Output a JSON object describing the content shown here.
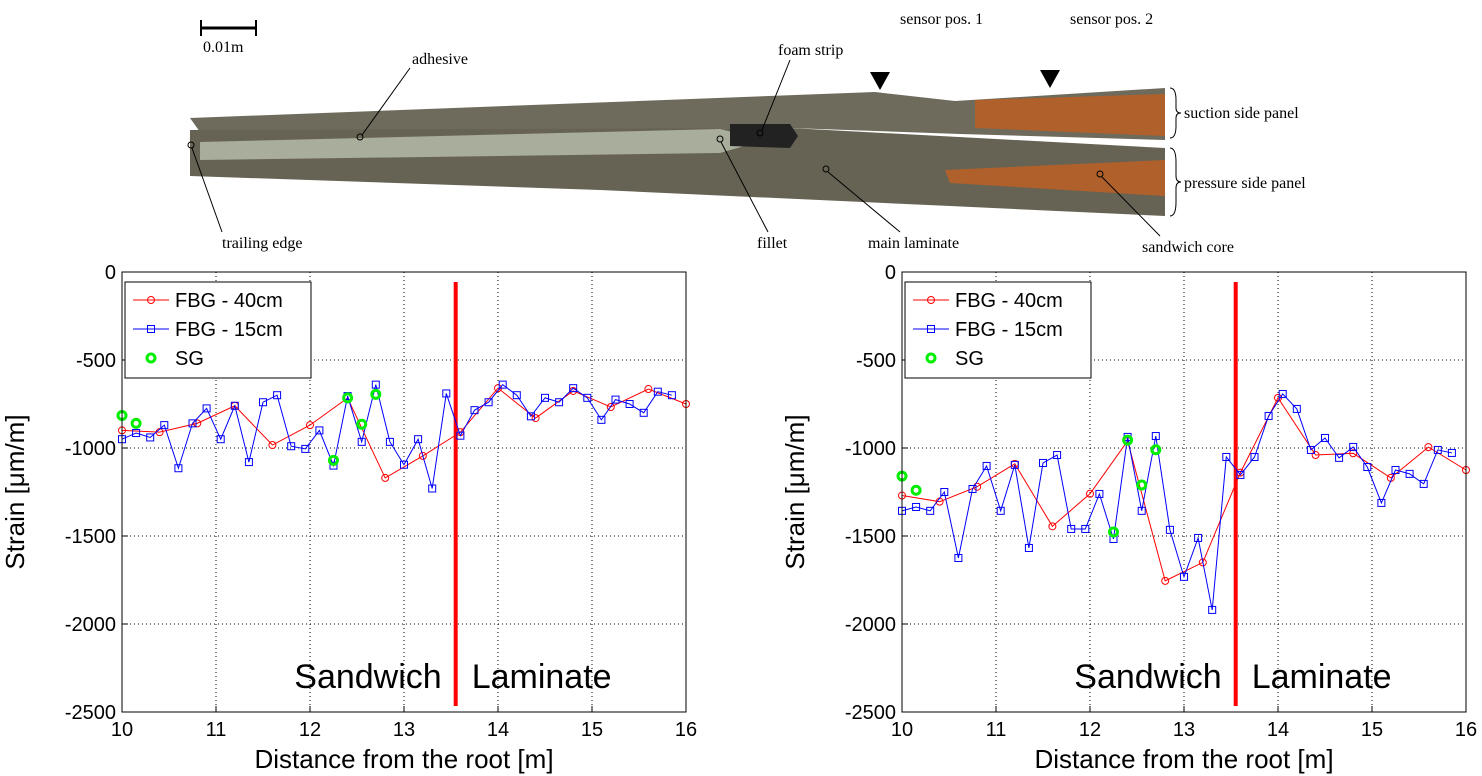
{
  "photo": {
    "scale_bar": "0.01m",
    "labels": {
      "adhesive": "adhesive",
      "foam_strip": "foam strip",
      "sensor_1": "sensor pos. 1",
      "sensor_2": "sensor pos. 2",
      "suction": "suction side panel",
      "pressure": "pressure side panel",
      "trailing_edge": "trailing edge",
      "fillet": "fillet",
      "main_laminate": "main laminate",
      "sandwich_core": "sandwich core"
    }
  },
  "chart_data": [
    {
      "type": "line",
      "xlabel": "Distance from the root [m]",
      "ylabel": "Strain [μm/m]",
      "xlim": [
        10,
        16
      ],
      "ylim": [
        -2500,
        0
      ],
      "xticks": [
        10,
        11,
        12,
        13,
        14,
        15,
        16
      ],
      "yticks": [
        -2500,
        -2000,
        -1500,
        -1000,
        -500,
        0
      ],
      "grid": true,
      "legend": "upper left",
      "divider_x": 13.55,
      "divider_color": "#ff0000",
      "annotations": [
        "Sandwich",
        "Laminate"
      ],
      "series": [
        {
          "name": "FBG - 40cm",
          "color": "#ff0000",
          "marker": "circle",
          "line": true,
          "x": [
            10,
            10.4,
            10.8,
            11.2,
            11.6,
            12.0,
            12.4,
            12.8,
            13.2,
            13.6,
            14.0,
            14.4,
            14.8,
            15.2,
            15.6,
            16.0
          ],
          "values": [
            -900,
            -910,
            -860,
            -760,
            -983,
            -870,
            -716,
            -1170,
            -1045,
            -910,
            -660,
            -830,
            -676,
            -767,
            -665,
            -750
          ]
        },
        {
          "name": "FBG - 15cm",
          "color": "#0000ff",
          "marker": "square",
          "line": true,
          "x": [
            10,
            10.15,
            10.3,
            10.45,
            10.6,
            10.75,
            10.9,
            11.05,
            11.2,
            11.35,
            11.5,
            11.65,
            11.8,
            11.95,
            12.1,
            12.25,
            12.4,
            12.55,
            12.7,
            12.85,
            13.0,
            13.15,
            13.3,
            13.45,
            13.6,
            13.75,
            13.9,
            14.05,
            14.2,
            14.35,
            14.5,
            14.65,
            14.8,
            14.95,
            15.1,
            15.25,
            15.4,
            15.55,
            15.7,
            15.85
          ],
          "values": [
            -950,
            -915,
            -940,
            -870,
            -1115,
            -860,
            -775,
            -950,
            -760,
            -1080,
            -740,
            -700,
            -990,
            -1005,
            -900,
            -1100,
            -705,
            -965,
            -640,
            -965,
            -1095,
            -950,
            -1230,
            -690,
            -930,
            -785,
            -740,
            -640,
            -700,
            -820,
            -715,
            -740,
            -660,
            -715,
            -840,
            -725,
            -750,
            -800,
            -680,
            -700
          ]
        },
        {
          "name": "SG",
          "color": "#00ee00",
          "marker": "ring",
          "line": false,
          "x": [
            10,
            10.15,
            12.25,
            12.4,
            12.55,
            12.7
          ],
          "values": [
            -815,
            -860,
            -1070,
            -715,
            -865,
            -695
          ]
        }
      ]
    },
    {
      "type": "line",
      "xlabel": "Distance from the root [m]",
      "ylabel": "Strain [μm/m]",
      "xlim": [
        10,
        16
      ],
      "ylim": [
        -2500,
        0
      ],
      "xticks": [
        10,
        11,
        12,
        13,
        14,
        15,
        16
      ],
      "yticks": [
        -2500,
        -2000,
        -1500,
        -1000,
        -500,
        0
      ],
      "grid": true,
      "legend": "upper left",
      "divider_x": 13.55,
      "divider_color": "#ff0000",
      "annotations": [
        "Sandwich",
        "Laminate"
      ],
      "series": [
        {
          "name": "FBG - 40cm",
          "color": "#ff0000",
          "marker": "circle",
          "line": true,
          "x": [
            10,
            10.4,
            10.8,
            11.2,
            11.6,
            12.0,
            12.4,
            12.8,
            13.2,
            13.6,
            14.0,
            14.4,
            14.8,
            15.2,
            15.6,
            16.0
          ],
          "values": [
            -1270,
            -1305,
            -1220,
            -1090,
            -1445,
            -1260,
            -960,
            -1755,
            -1650,
            -1140,
            -715,
            -1040,
            -1030,
            -1170,
            -995,
            -1125
          ]
        },
        {
          "name": "FBG - 15cm",
          "color": "#0000ff",
          "marker": "square",
          "line": true,
          "x": [
            10,
            10.15,
            10.3,
            10.45,
            10.6,
            10.75,
            10.9,
            11.05,
            11.2,
            11.35,
            11.5,
            11.65,
            11.8,
            11.95,
            12.1,
            12.25,
            12.4,
            12.55,
            12.7,
            12.85,
            13.0,
            13.15,
            13.3,
            13.45,
            13.6,
            13.75,
            13.9,
            14.05,
            14.2,
            14.35,
            14.5,
            14.65,
            14.8,
            14.95,
            15.1,
            15.25,
            15.4,
            15.55,
            15.7,
            15.85
          ],
          "values": [
            -1357,
            -1335,
            -1357,
            -1250,
            -1625,
            -1233,
            -1102,
            -1357,
            -1096,
            -1568,
            -1085,
            -1040,
            -1460,
            -1460,
            -1261,
            -1517,
            -937,
            -1357,
            -932,
            -1465,
            -1732,
            -1511,
            -1920,
            -1051,
            -1153,
            -1051,
            -818,
            -693,
            -778,
            -1011,
            -943,
            -1056,
            -994,
            -1108,
            -1312,
            -1125,
            -1147,
            -1204,
            -1011,
            -1028
          ]
        },
        {
          "name": "SG",
          "color": "#00ee00",
          "marker": "ring",
          "line": false,
          "x": [
            10,
            10.15,
            12.25,
            12.4,
            12.55,
            12.7
          ],
          "values": [
            -1160,
            -1240,
            -1477,
            -955,
            -1210,
            -1010
          ]
        }
      ]
    }
  ]
}
